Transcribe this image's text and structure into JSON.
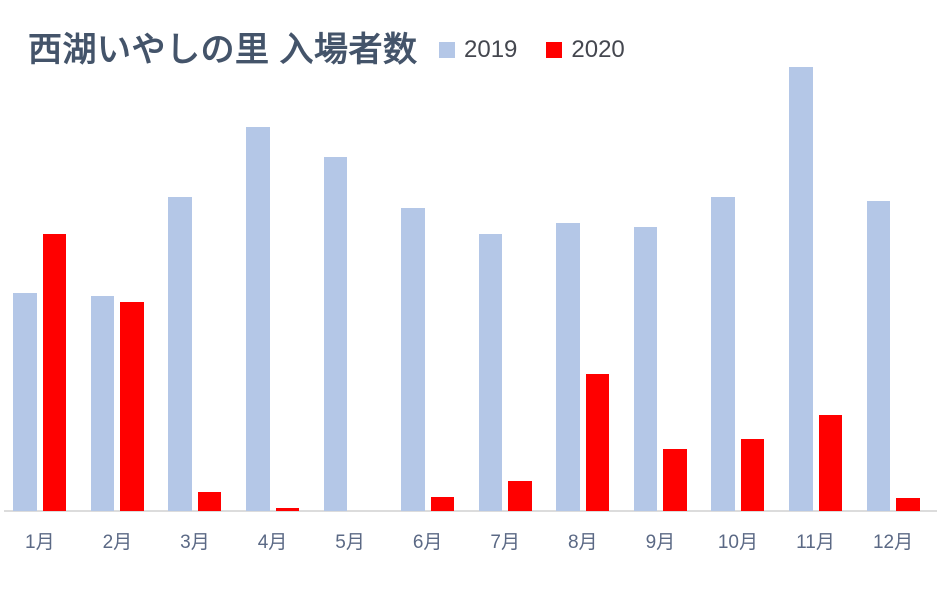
{
  "chart_data": {
    "type": "bar",
    "title": "西湖いやしの里 入場者数",
    "categories": [
      "1月",
      "2月",
      "3月",
      "4月",
      "5月",
      "6月",
      "7月",
      "8月",
      "9月",
      "10月",
      "11月",
      "12月"
    ],
    "series": [
      {
        "name": "2019",
        "color": "#B4C7E7",
        "values": [
          49.1,
          48.4,
          70.7,
          86.5,
          79.7,
          68.2,
          62.4,
          64.9,
          64.0,
          70.7,
          100,
          69.8
        ]
      },
      {
        "name": "2020",
        "color": "#FF0000",
        "values": [
          62.4,
          47.1,
          4.3,
          0.7,
          0,
          3.2,
          6.8,
          30.9,
          14.0,
          16.2,
          21.6,
          2.9
        ]
      }
    ],
    "xlabel": "",
    "ylabel": "",
    "ylim": [
      0,
      100
    ],
    "y_axis_visible": false,
    "gridlines": false,
    "legend_position": "top-right",
    "note": "values are relative bar heights in % of tallest bar (2019-11月); chart shows no value axis"
  },
  "colors": {
    "title_text": "#44546A",
    "legend_text": "#44474F",
    "axis_label_text": "#5B6985",
    "axis_line": "#DCDCDC",
    "background": "#FFFFFF",
    "series_2019": "#B4C7E7",
    "series_2020": "#FF0000"
  }
}
